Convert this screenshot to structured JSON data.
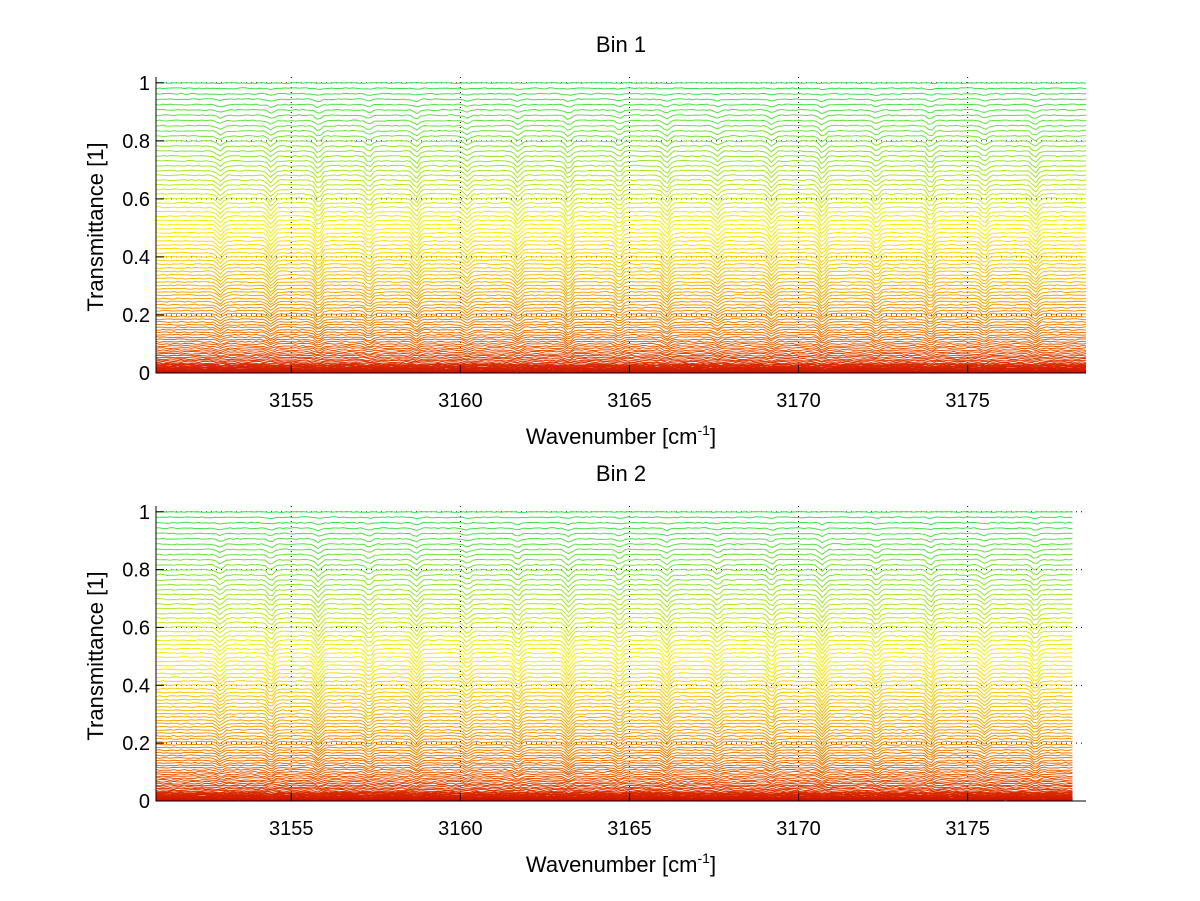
{
  "chart_data": [
    {
      "type": "line",
      "title": "Bin 1",
      "xlabel_main": "Wavenumber [cm",
      "xlabel_sup": "-1",
      "xlabel_end": "]",
      "ylabel": "Transmittance [1]",
      "xlim": [
        3151,
        3178.5
      ],
      "ylim": [
        0,
        1.02
      ],
      "data_xrange": [
        3151,
        3178.5
      ],
      "xticks": [
        3155,
        3160,
        3165,
        3170,
        3175
      ],
      "yticks": [
        0,
        0.2,
        0.4,
        0.6,
        0.8,
        1
      ],
      "xtick_labels": [
        "3155",
        "3160",
        "3165",
        "3170",
        "3175"
      ],
      "ytick_labels": [
        "0",
        "0.2",
        "0.4",
        "0.6",
        "0.8",
        "1"
      ],
      "grid": true,
      "colormap": [
        "#cc0000",
        "#ee7700",
        "#ffee00",
        "#33dd55"
      ],
      "series_count": 90,
      "absorption_lines": [
        3152.9,
        3154.4,
        3155.8,
        3157.3,
        3158.7,
        3160.2,
        3161.7,
        3163.2,
        3164.7,
        3166.1,
        3167.6,
        3169.2,
        3170.7,
        3172.3,
        3173.9,
        3175.5,
        3177.0
      ]
    },
    {
      "type": "line",
      "title": "Bin 2",
      "xlabel_main": "Wavenumber [cm",
      "xlabel_sup": "-1",
      "xlabel_end": "]",
      "ylabel": "Transmittance [1]",
      "xlim": [
        3151,
        3178.5
      ],
      "ylim": [
        0,
        1.02
      ],
      "data_xrange": [
        3151,
        3178.1
      ],
      "xticks": [
        3155,
        3160,
        3165,
        3170,
        3175
      ],
      "yticks": [
        0,
        0.2,
        0.4,
        0.6,
        0.8,
        1
      ],
      "xtick_labels": [
        "3155",
        "3160",
        "3165",
        "3170",
        "3175"
      ],
      "ytick_labels": [
        "0",
        "0.2",
        "0.4",
        "0.6",
        "0.8",
        "1"
      ],
      "grid": true,
      "colormap": [
        "#cc0000",
        "#ee7700",
        "#ffee00",
        "#33dd55"
      ],
      "series_count": 90,
      "absorption_lines": [
        3152.9,
        3154.4,
        3155.8,
        3157.3,
        3158.7,
        3160.2,
        3161.7,
        3163.2,
        3164.7,
        3166.1,
        3167.6,
        3169.2,
        3170.7,
        3172.3,
        3173.9,
        3175.5,
        3177.0
      ]
    }
  ]
}
